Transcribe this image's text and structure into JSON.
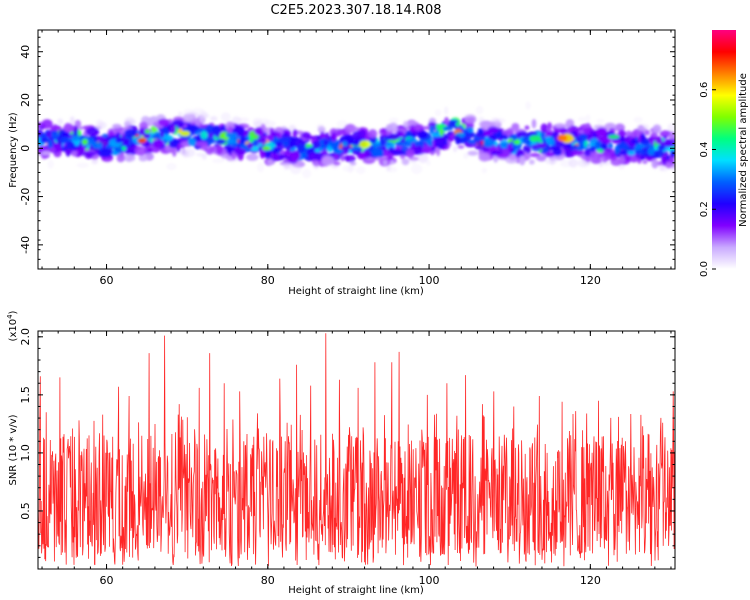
{
  "title": "C2E5.2023.307.18.14.R08",
  "chart_data": [
    {
      "type": "heatmap",
      "xlabel": "Height of straight line (km)",
      "ylabel": "Frequency (Hz)",
      "xlim": [
        51.5,
        130.5
      ],
      "ylim": [
        -50,
        49
      ],
      "xticks": [
        "60",
        "80",
        "100",
        "120"
      ],
      "yticks": [
        "40",
        "20",
        "0",
        "-20",
        "-40"
      ],
      "ytick_values": [
        40,
        20,
        0,
        -20,
        -40
      ],
      "xtick_values": [
        60,
        80,
        100,
        120
      ],
      "signal_band": {
        "center_hz": [
          {
            "x": 52,
            "y": 4
          },
          {
            "x": 56,
            "y": 3
          },
          {
            "x": 60,
            "y": 1
          },
          {
            "x": 65,
            "y": 4
          },
          {
            "x": 70,
            "y": 6
          },
          {
            "x": 75,
            "y": 4
          },
          {
            "x": 80,
            "y": 1
          },
          {
            "x": 85,
            "y": 0
          },
          {
            "x": 90,
            "y": 1
          },
          {
            "x": 95,
            "y": 1
          },
          {
            "x": 100,
            "y": 4
          },
          {
            "x": 103,
            "y": 8
          },
          {
            "x": 106,
            "y": 4
          },
          {
            "x": 110,
            "y": 2
          },
          {
            "x": 115,
            "y": 3
          },
          {
            "x": 120,
            "y": 2
          },
          {
            "x": 125,
            "y": 1
          },
          {
            "x": 130,
            "y": 0
          }
        ],
        "half_width_hz": 10,
        "peak_amplitude": 0.75
      },
      "colorbar": {
        "label": "Normalized spectral amplitude",
        "ticks": [
          "0.0",
          "0.2",
          "0.4",
          "0.6"
        ],
        "tick_values": [
          0.0,
          0.2,
          0.4,
          0.6
        ],
        "range": [
          0,
          0.8
        ],
        "colors": [
          "#ffffff",
          "#c9a9ff",
          "#8000ff",
          "#2000ff",
          "#0060ff",
          "#00e0ff",
          "#00ff80",
          "#80ff00",
          "#ffff00",
          "#ff8000",
          "#ff0000",
          "#ff0080"
        ]
      }
    },
    {
      "type": "line",
      "xlabel": "Height of straight line (km)",
      "ylabel": "SNR (10 * v/v)",
      "multiplier": "(x10^4)",
      "xlim": [
        51.5,
        130.5
      ],
      "ylim": [
        0,
        2.05
      ],
      "xticks": [
        "60",
        "80",
        "100",
        "120"
      ],
      "xtick_values": [
        60,
        80,
        100,
        120
      ],
      "yticks": [
        "0.5",
        "1.0",
        "1.5",
        "2.0"
      ],
      "ytick_values": [
        0.5,
        1.0,
        1.5,
        2.0
      ],
      "series": [
        {
          "color": "#ff0000",
          "summary": {
            "min": 0.0,
            "max": 2.03,
            "mean": 0.65
          },
          "peaks": [
            {
              "x": 51.8,
              "y": 1.66
            },
            {
              "x": 54.2,
              "y": 1.65
            },
            {
              "x": 56.6,
              "y": 1.28
            },
            {
              "x": 59.5,
              "y": 1.33
            },
            {
              "x": 61.5,
              "y": 1.57
            },
            {
              "x": 62.8,
              "y": 1.49
            },
            {
              "x": 65.3,
              "y": 1.86
            },
            {
              "x": 67.2,
              "y": 2.01
            },
            {
              "x": 69.0,
              "y": 1.42
            },
            {
              "x": 71.5,
              "y": 1.56
            },
            {
              "x": 72.8,
              "y": 1.86
            },
            {
              "x": 74.6,
              "y": 1.6
            },
            {
              "x": 76.5,
              "y": 1.53
            },
            {
              "x": 78.7,
              "y": 1.34
            },
            {
              "x": 81.5,
              "y": 1.64
            },
            {
              "x": 83.6,
              "y": 1.76
            },
            {
              "x": 85.3,
              "y": 1.58
            },
            {
              "x": 87.2,
              "y": 2.03
            },
            {
              "x": 88.9,
              "y": 1.63
            },
            {
              "x": 91.2,
              "y": 1.56
            },
            {
              "x": 93.3,
              "y": 1.78
            },
            {
              "x": 95.4,
              "y": 1.78
            },
            {
              "x": 96.3,
              "y": 1.87
            },
            {
              "x": 99.8,
              "y": 1.5
            },
            {
              "x": 102.2,
              "y": 1.6
            },
            {
              "x": 104.5,
              "y": 1.67
            },
            {
              "x": 106.6,
              "y": 1.42
            },
            {
              "x": 108.0,
              "y": 1.53
            },
            {
              "x": 110.5,
              "y": 1.4
            },
            {
              "x": 113.7,
              "y": 1.49
            },
            {
              "x": 116.5,
              "y": 1.44
            },
            {
              "x": 118.2,
              "y": 1.36
            },
            {
              "x": 121.0,
              "y": 1.45
            },
            {
              "x": 123.5,
              "y": 1.31
            },
            {
              "x": 126.5,
              "y": 1.23
            },
            {
              "x": 128.7,
              "y": 1.18
            },
            {
              "x": 130.3,
              "y": 1.53
            }
          ]
        }
      ]
    }
  ]
}
